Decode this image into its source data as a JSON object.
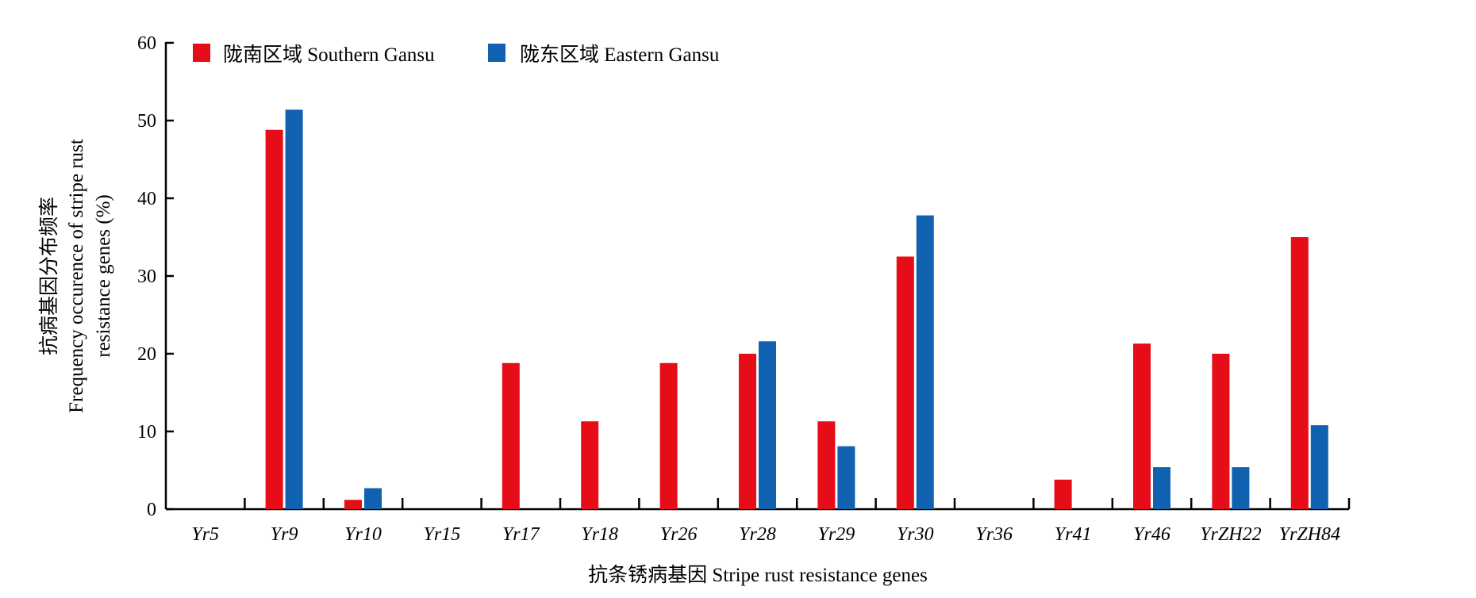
{
  "chart_data": {
    "type": "bar",
    "categories": [
      "Yr5",
      "Yr9",
      "Yr10",
      "Yr15",
      "Yr17",
      "Yr18",
      "Yr26",
      "Yr28",
      "Yr29",
      "Yr30",
      "Yr36",
      "Yr41",
      "Yr46",
      "YrZH22",
      "YrZH84"
    ],
    "series": [
      {
        "name": "陇南区域 Southern Gansu",
        "color": "#e60c18",
        "values": [
          0,
          48.8,
          1.2,
          0,
          18.8,
          11.3,
          18.8,
          20.0,
          11.3,
          32.5,
          0,
          3.8,
          21.3,
          20.0,
          35.0
        ]
      },
      {
        "name": "陇东区域 Eastern Gansu",
        "color": "#1161b1",
        "values": [
          0,
          51.4,
          2.7,
          0,
          0,
          0,
          0,
          21.6,
          8.1,
          37.8,
          0,
          0,
          5.4,
          5.4,
          10.8
        ]
      }
    ],
    "yticks": [
      "0",
      "10",
      "20",
      "30",
      "40",
      "50",
      "60"
    ],
    "ylim": [
      0,
      60
    ],
    "xlabel": "抗条锈病基因 Stripe rust resistance genes",
    "ylabel_lines": [
      "抗病基因分布频率",
      "Frequency occurence of stripe rust",
      "resistance genes (%)"
    ],
    "legend_position": "top-left",
    "grid": false
  }
}
